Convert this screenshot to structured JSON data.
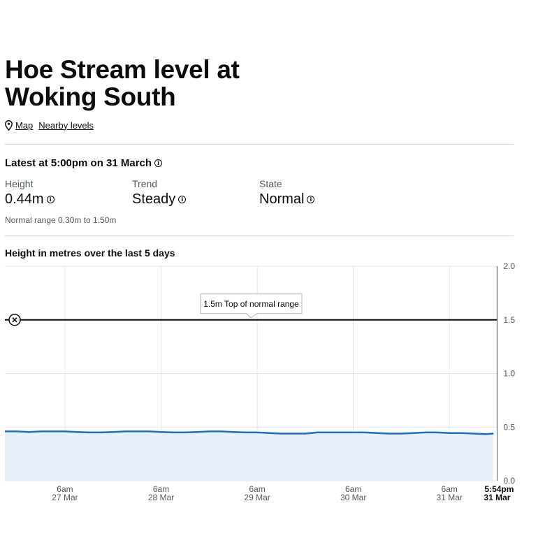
{
  "page": {
    "title": "Hoe Stream level at Woking South",
    "links": {
      "map": "Map",
      "nearby": "Nearby levels"
    },
    "latest": "Latest at 5:00pm on 31 March",
    "stats": [
      {
        "label": "Height",
        "value": "0.44m"
      },
      {
        "label": "Trend",
        "value": "Steady"
      },
      {
        "label": "State",
        "value": "Normal"
      }
    ],
    "normal_range": "Normal range 0.30m to 1.50m",
    "chart_title": "Height in metres over the last 5 days"
  },
  "colors": {
    "line": "#1d70b8",
    "area": "#e8f0fa",
    "threshold": "#0b0c0c",
    "grid": "#e6e6e6"
  },
  "chart_data": {
    "type": "area",
    "title": "Height in metres over the last 5 days",
    "ylim": [
      0,
      2.0
    ],
    "yticks": [
      "0.0",
      "0.5",
      "1.0",
      "1.5",
      "2.0"
    ],
    "ytick_values": [
      0,
      0.5,
      1.0,
      1.5,
      2.0
    ],
    "xlim": [
      "26 Mar 15:00",
      "31 Mar 18:00"
    ],
    "xticks": [
      {
        "time": "27 Mar 06:00",
        "line1": "6am",
        "line2": "27 Mar"
      },
      {
        "time": "28 Mar 06:00",
        "line1": "6am",
        "line2": "28 Mar"
      },
      {
        "time": "29 Mar 06:00",
        "line1": "6am",
        "line2": "29 Mar"
      },
      {
        "time": "30 Mar 06:00",
        "line1": "6am",
        "line2": "30 Mar"
      },
      {
        "time": "31 Mar 06:00",
        "line1": "6am",
        "line2": "31 Mar"
      }
    ],
    "now": {
      "time": "31 Mar 17:54",
      "line1": "5:54pm",
      "line2": "31 Mar"
    },
    "threshold": {
      "value": 1.5,
      "label": "1.5m Top of normal range"
    },
    "grid": true,
    "series": [
      {
        "x": [
          "26 Mar 15:00",
          "26 Mar 18:00",
          "26 Mar 21:00",
          "27 Mar 00:00",
          "27 Mar 03:00",
          "27 Mar 06:00",
          "27 Mar 09:00",
          "27 Mar 12:00",
          "27 Mar 15:00",
          "27 Mar 18:00",
          "27 Mar 21:00",
          "28 Mar 00:00",
          "28 Mar 03:00",
          "28 Mar 06:00",
          "28 Mar 09:00",
          "28 Mar 12:00",
          "28 Mar 15:00",
          "28 Mar 18:00",
          "28 Mar 21:00",
          "29 Mar 00:00",
          "29 Mar 03:00",
          "29 Mar 06:00",
          "29 Mar 09:00",
          "29 Mar 12:00",
          "29 Mar 15:00",
          "29 Mar 18:00",
          "29 Mar 21:00",
          "30 Mar 00:00",
          "30 Mar 03:00",
          "30 Mar 06:00",
          "30 Mar 09:00",
          "30 Mar 12:00",
          "30 Mar 15:00",
          "30 Mar 18:00",
          "30 Mar 21:00",
          "31 Mar 00:00",
          "31 Mar 03:00",
          "31 Mar 06:00",
          "31 Mar 09:00",
          "31 Mar 12:00",
          "31 Mar 15:00",
          "31 Mar 17:00"
        ],
        "values": [
          0.46,
          0.46,
          0.455,
          0.46,
          0.46,
          0.46,
          0.455,
          0.45,
          0.45,
          0.455,
          0.46,
          0.46,
          0.46,
          0.455,
          0.45,
          0.45,
          0.455,
          0.46,
          0.46,
          0.455,
          0.45,
          0.45,
          0.445,
          0.44,
          0.44,
          0.44,
          0.45,
          0.45,
          0.45,
          0.45,
          0.45,
          0.445,
          0.44,
          0.44,
          0.445,
          0.45,
          0.45,
          0.445,
          0.445,
          0.44,
          0.435,
          0.44
        ]
      }
    ]
  }
}
